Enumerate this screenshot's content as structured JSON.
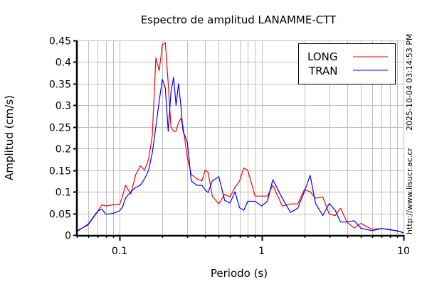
{
  "chart_data": {
    "type": "line",
    "title": "Espectro de amplitud LANAMME-CTT",
    "xlabel": "Periodo (s)",
    "ylabel": "Amplitud (cm/s)",
    "xscale": "log",
    "xlim": [
      0.05,
      10
    ],
    "ylim": [
      0,
      0.45
    ],
    "xticks": [
      0.1,
      1,
      10
    ],
    "xtick_labels": [
      "0.1",
      "1",
      "10"
    ],
    "yticks": [
      0,
      0.05,
      0.1,
      0.15,
      0.2,
      0.25,
      0.3,
      0.35,
      0.4,
      0.45
    ],
    "ytick_labels": [
      "0",
      "0.05",
      "0.1",
      "0.15",
      "0.2",
      "0.25",
      "0.3",
      "0.35",
      "0.4",
      "0.45"
    ],
    "grid": true,
    "legend_position": "top-right",
    "x": [
      0.05,
      0.06,
      0.07,
      0.075,
      0.08,
      0.09,
      0.1,
      0.105,
      0.11,
      0.12,
      0.13,
      0.14,
      0.15,
      0.16,
      0.17,
      0.18,
      0.19,
      0.2,
      0.21,
      0.22,
      0.23,
      0.24,
      0.25,
      0.26,
      0.27,
      0.28,
      0.3,
      0.32,
      0.35,
      0.38,
      0.4,
      0.42,
      0.45,
      0.5,
      0.55,
      0.6,
      0.65,
      0.7,
      0.75,
      0.8,
      0.9,
      1.0,
      1.1,
      1.2,
      1.4,
      1.6,
      1.8,
      2.0,
      2.2,
      2.4,
      2.7,
      3.0,
      3.3,
      3.6,
      4,
      4.5,
      5,
      6,
      7,
      8,
      9,
      10
    ],
    "series": [
      {
        "name": "LONG",
        "color": "#ff0000",
        "values": [
          0.01,
          0.023,
          0.054,
          0.07,
          0.067,
          0.07,
          0.07,
          0.09,
          0.115,
          0.095,
          0.14,
          0.16,
          0.15,
          0.175,
          0.23,
          0.41,
          0.38,
          0.44,
          0.445,
          0.35,
          0.25,
          0.24,
          0.24,
          0.26,
          0.27,
          0.25,
          0.18,
          0.14,
          0.13,
          0.125,
          0.15,
          0.145,
          0.09,
          0.072,
          0.094,
          0.088,
          0.11,
          0.125,
          0.155,
          0.15,
          0.09,
          0.09,
          0.09,
          0.115,
          0.067,
          0.072,
          0.072,
          0.105,
          0.1,
          0.085,
          0.088,
          0.048,
          0.045,
          0.062,
          0.03,
          0.016,
          0.027,
          0.013,
          0.015,
          0.013,
          0.009,
          0.006
        ]
      },
      {
        "name": "TRAN",
        "color": "#0000ff",
        "values": [
          0.008,
          0.025,
          0.055,
          0.06,
          0.048,
          0.05,
          0.056,
          0.065,
          0.085,
          0.1,
          0.11,
          0.115,
          0.13,
          0.15,
          0.19,
          0.25,
          0.31,
          0.36,
          0.34,
          0.24,
          0.33,
          0.365,
          0.3,
          0.35,
          0.3,
          0.24,
          0.215,
          0.125,
          0.115,
          0.115,
          0.105,
          0.098,
          0.125,
          0.135,
          0.08,
          0.074,
          0.1,
          0.063,
          0.057,
          0.078,
          0.078,
          0.067,
          0.078,
          0.128,
          0.085,
          0.052,
          0.062,
          0.1,
          0.138,
          0.073,
          0.045,
          0.073,
          0.057,
          0.03,
          0.03,
          0.033,
          0.016,
          0.01,
          0.015,
          0.012,
          0.01,
          0.005
        ]
      }
    ]
  },
  "side_text": {
    "timestamp": "2025-10-04 03:14:53 PM",
    "url": "http://www.lisucr.ac.cr"
  }
}
